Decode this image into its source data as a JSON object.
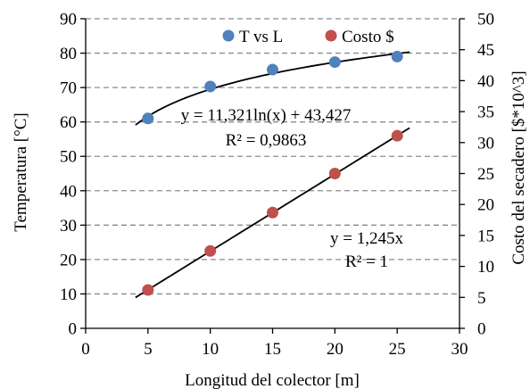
{
  "chart_data": {
    "type": "scatter",
    "title": "",
    "xlabel": "Longitud del colector [m]",
    "ylabel_left": "Temperatura [°C]",
    "ylabel_right": "Costo del secadero [$*10^3]",
    "xlim": [
      0,
      30
    ],
    "ylim_left": [
      0,
      90
    ],
    "ylim_right": [
      0,
      50
    ],
    "xticks": [
      "0",
      "5",
      "10",
      "15",
      "20",
      "25",
      "30"
    ],
    "yticks_left": [
      "0",
      "10",
      "20",
      "30",
      "40",
      "50",
      "60",
      "70",
      "80",
      "90"
    ],
    "yticks_right": [
      "0",
      "5",
      "10",
      "15",
      "20",
      "25",
      "30",
      "35",
      "40",
      "45",
      "50"
    ],
    "grid": "horizontal dashed",
    "legend_position": "top",
    "series": [
      {
        "name": "T vs L",
        "axis": "left",
        "color": "#4f81bd",
        "x": [
          5,
          10,
          15,
          20,
          25
        ],
        "y": [
          61,
          70.3,
          75.2,
          77.4,
          79
        ]
      },
      {
        "name": "Costo $",
        "axis": "right",
        "color": "#c0504d",
        "x": [
          5,
          10,
          15,
          20,
          25
        ],
        "y": [
          6.2,
          12.5,
          18.7,
          25,
          31.1
        ]
      }
    ],
    "trendlines": [
      {
        "series": "T vs L",
        "kind": "logarithmic",
        "a": 11.321,
        "b": 43.427,
        "x_range": [
          4,
          26
        ],
        "equation": "y = 11,321ln(x) + 43,427",
        "r2": "R² = 0,9863"
      },
      {
        "series": "Costo $",
        "kind": "linear",
        "slope": 1.245,
        "x_range": [
          4,
          26
        ],
        "equation": "y = 1,245x",
        "r2": "R² = 1"
      }
    ]
  }
}
